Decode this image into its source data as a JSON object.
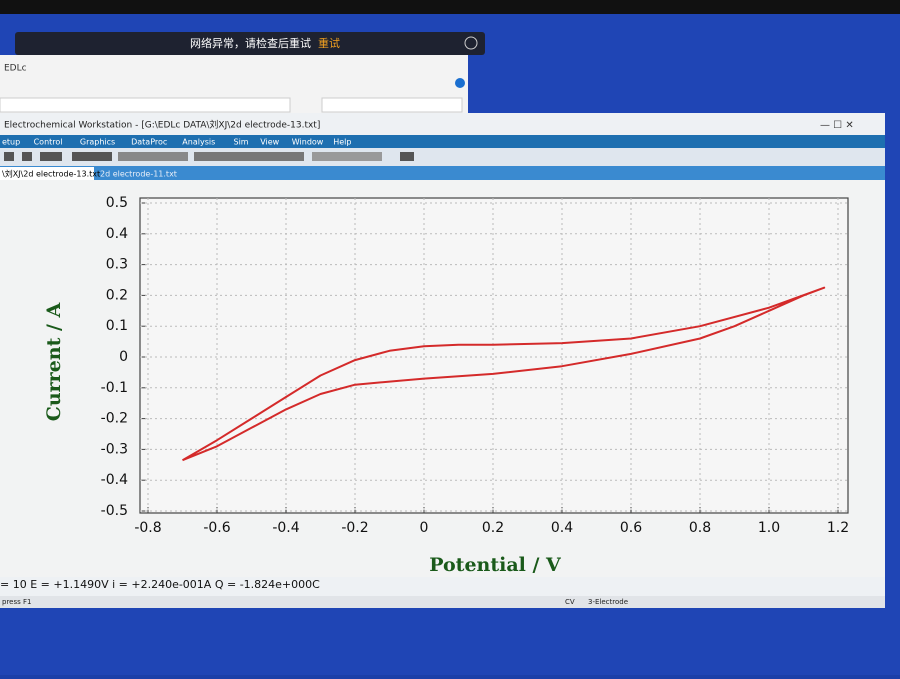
{
  "notification": {
    "message": "网络异常，请检查后重试",
    "action": "重试"
  },
  "background_window": {
    "title": "EDLc"
  },
  "window": {
    "title": "Electrochemical Workstation - [G:\\EDLc DATA\\刘XJ\\2d electrode-13.txt]",
    "menu": [
      "etup",
      "Control",
      "Graphics",
      "DataProc",
      "Analysis",
      "Sim",
      "View",
      "Window",
      "Help"
    ],
    "tabs": [
      "\\刘XJ\\2d electrode-13.txt",
      "2d electrode-11.txt"
    ],
    "readout": "= 10  E = +1.1490V  i = +2.240e-001A  Q = -1.824e+000C",
    "status": [
      "press F1",
      "CV",
      "3-Electrode"
    ]
  },
  "chart_data": {
    "type": "line",
    "x_label": "Potential / V",
    "y_label": "Current / A",
    "xlim": [
      -0.8,
      1.2
    ],
    "ylim": [
      -0.5,
      0.5
    ],
    "xticks": [
      -0.8,
      -0.6,
      -0.4,
      -0.2,
      0,
      0.2,
      0.4,
      0.6,
      0.8,
      {
        "value": 1,
        "label": "1.0"
      },
      1.2
    ],
    "yticks": [
      -0.5,
      -0.4,
      -0.3,
      -0.2,
      -0.1,
      0,
      0.1,
      0.2,
      0.3,
      0.4,
      0.5
    ],
    "grid": true,
    "series": [
      {
        "color": "#d42a2a",
        "x": [
          -0.7,
          -0.6,
          -0.5,
          -0.4,
          -0.3,
          -0.2,
          -0.1,
          0,
          0.1,
          0.2,
          0.4,
          0.6,
          0.8,
          1.0,
          1.16,
          1.1,
          1.0,
          0.9,
          0.8,
          0.6,
          0.4,
          0.2,
          0,
          -0.1,
          -0.2,
          -0.3,
          -0.4,
          -0.5,
          -0.6,
          -0.7
        ],
        "y": [
          -0.335,
          -0.27,
          -0.2,
          -0.13,
          -0.06,
          -0.01,
          0.02,
          0.035,
          0.04,
          0.04,
          0.045,
          0.06,
          0.1,
          0.16,
          0.225,
          0.2,
          0.15,
          0.1,
          0.06,
          0.01,
          -0.03,
          -0.055,
          -0.07,
          -0.08,
          -0.09,
          -0.12,
          -0.17,
          -0.23,
          -0.29,
          -0.335
        ]
      }
    ]
  }
}
